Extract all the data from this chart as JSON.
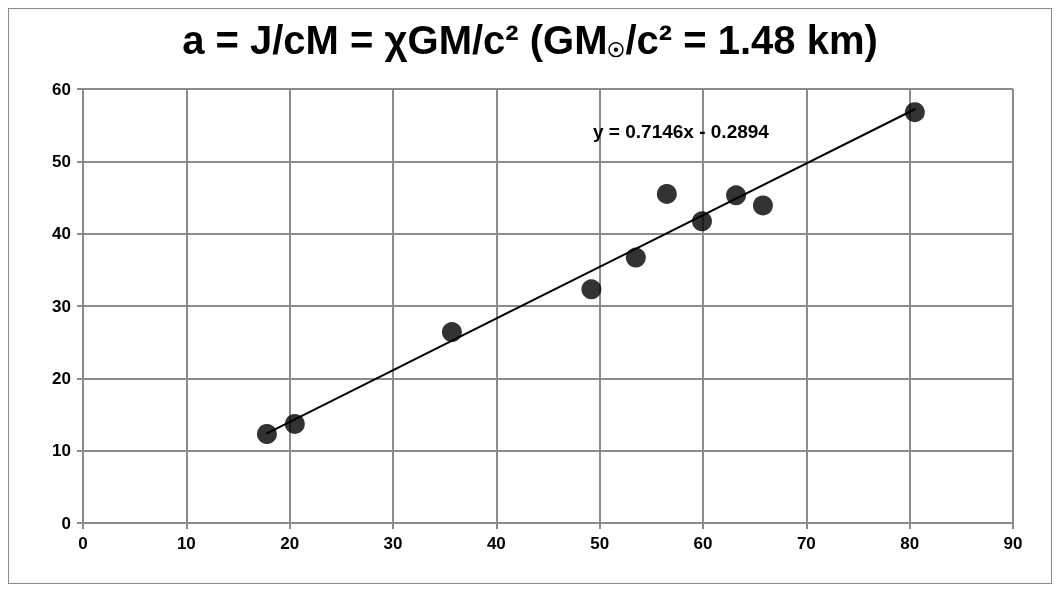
{
  "chart_data": {
    "type": "scatter",
    "title": "a = J/cM = χGM/c² (GM$_{☉}$/c² = 1.48 km)",
    "xlim": [
      0,
      90
    ],
    "xticks": [
      0,
      10,
      20,
      30,
      40,
      50,
      60,
      70,
      80,
      90
    ],
    "ylim": [
      0,
      60
    ],
    "yticks": [
      0,
      10,
      20,
      30,
      40,
      50,
      60
    ],
    "grid": true,
    "marker": "circle",
    "series": [
      {
        "color": "#000000",
        "x": [
          17.8,
          20.5,
          35.7,
          49.2,
          53.5,
          56.5,
          59.9,
          63.2,
          65.8,
          80.5
        ],
        "values": [
          12.3,
          13.7,
          26.4,
          32.3,
          36.7,
          45.5,
          41.7,
          45.3,
          43.9,
          56.8
        ]
      },
      {
        "type": "line",
        "color": "#000000",
        "marker": "none",
        "line_style": "solid",
        "x": [
          17.8,
          80.5
        ],
        "values": [
          12.4,
          57.2
        ]
      }
    ],
    "annotations": [
      "y = 0.7146x - 0.2894"
    ]
  }
}
